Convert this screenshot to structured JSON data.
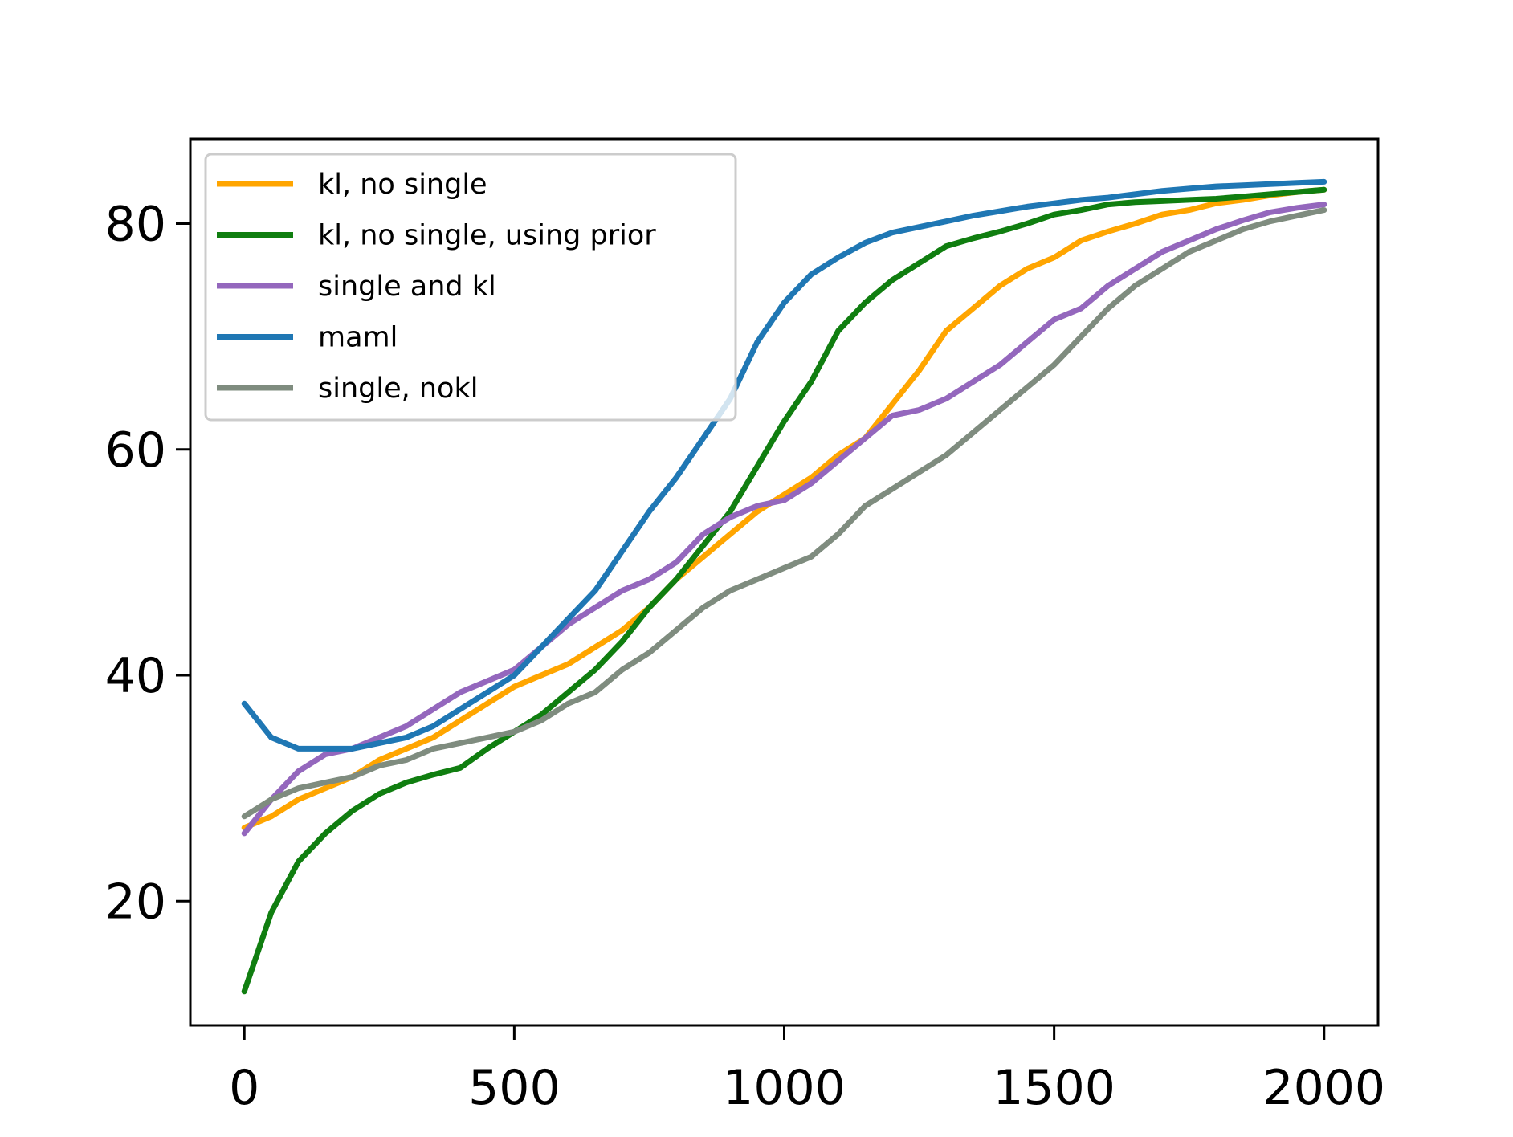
{
  "chart_data": {
    "type": "line",
    "title": "",
    "xlabel": "",
    "ylabel": "",
    "xlim": [
      -100,
      2100
    ],
    "ylim": [
      9,
      87.5
    ],
    "x_ticks": [
      0,
      500,
      1000,
      1500,
      2000
    ],
    "y_ticks": [
      20,
      40,
      60,
      80
    ],
    "x_tick_labels": [
      "0",
      "500",
      "1000",
      "1500",
      "2000"
    ],
    "y_tick_labels": [
      "20",
      "40",
      "60",
      "80"
    ],
    "grid": false,
    "legend_position": "upper-left",
    "x": [
      0,
      50,
      100,
      150,
      200,
      250,
      300,
      350,
      400,
      450,
      500,
      550,
      600,
      650,
      700,
      750,
      800,
      850,
      900,
      950,
      1000,
      1050,
      1100,
      1150,
      1200,
      1250,
      1300,
      1350,
      1400,
      1450,
      1500,
      1550,
      1600,
      1650,
      1700,
      1750,
      1800,
      1850,
      1900,
      1950,
      2000
    ],
    "series": [
      {
        "name": "kl, no single",
        "color": "#ffa500",
        "values": [
          26.5,
          27.5,
          29,
          30,
          31,
          32.5,
          33.5,
          34.5,
          36,
          37.5,
          39,
          40,
          41,
          42.5,
          44,
          46,
          48.5,
          50.5,
          52.5,
          54.5,
          56,
          57.5,
          59.5,
          61,
          64,
          67,
          70.5,
          72.5,
          74.5,
          76,
          77,
          78.5,
          79.3,
          80,
          80.8,
          81.2,
          81.8,
          82.1,
          82.5,
          82.8,
          83
        ]
      },
      {
        "name": "kl, no single, using prior",
        "color": "#107e10",
        "values": [
          12,
          19,
          23.5,
          26,
          28,
          29.5,
          30.5,
          31.2,
          31.8,
          33.5,
          35,
          36.5,
          38.5,
          40.5,
          43,
          46,
          48.5,
          51.5,
          54.5,
          58.5,
          62.5,
          66,
          70.5,
          73,
          75,
          76.5,
          78,
          78.7,
          79.3,
          80,
          80.8,
          81.2,
          81.7,
          81.9,
          82,
          82.1,
          82.2,
          82.4,
          82.6,
          82.8,
          83
        ]
      },
      {
        "name": "single and kl",
        "color": "#9467bd",
        "values": [
          26,
          29,
          31.5,
          33,
          33.5,
          34.5,
          35.5,
          37,
          38.5,
          39.5,
          40.5,
          42.5,
          44.5,
          46,
          47.5,
          48.5,
          50,
          52.5,
          54,
          55,
          55.5,
          57,
          59,
          61,
          63,
          63.5,
          64.5,
          66,
          67.5,
          69.5,
          71.5,
          72.5,
          74.5,
          76,
          77.5,
          78.5,
          79.5,
          80.3,
          81,
          81.4,
          81.7
        ]
      },
      {
        "name": "maml",
        "color": "#1f77b4",
        "values": [
          37.5,
          34.5,
          33.5,
          33.5,
          33.5,
          34,
          34.5,
          35.5,
          37,
          38.5,
          40,
          42.5,
          45,
          47.5,
          51,
          54.5,
          57.5,
          61,
          64.5,
          69.5,
          73,
          75.5,
          77,
          78.3,
          79.2,
          79.7,
          80.2,
          80.7,
          81.1,
          81.5,
          81.8,
          82.1,
          82.3,
          82.6,
          82.9,
          83.1,
          83.3,
          83.4,
          83.5,
          83.6,
          83.7
        ]
      },
      {
        "name": "single, nokl",
        "color": "#7f8c7f",
        "values": [
          27.5,
          29,
          30,
          30.5,
          31,
          32,
          32.5,
          33.5,
          34,
          34.5,
          35,
          36,
          37.5,
          38.5,
          40.5,
          42,
          44,
          46,
          47.5,
          48.5,
          49.5,
          50.5,
          52.5,
          55,
          56.5,
          58,
          59.5,
          61.5,
          63.5,
          65.5,
          67.5,
          70,
          72.5,
          74.5,
          76,
          77.5,
          78.5,
          79.5,
          80.2,
          80.7,
          81.2
        ]
      }
    ]
  }
}
